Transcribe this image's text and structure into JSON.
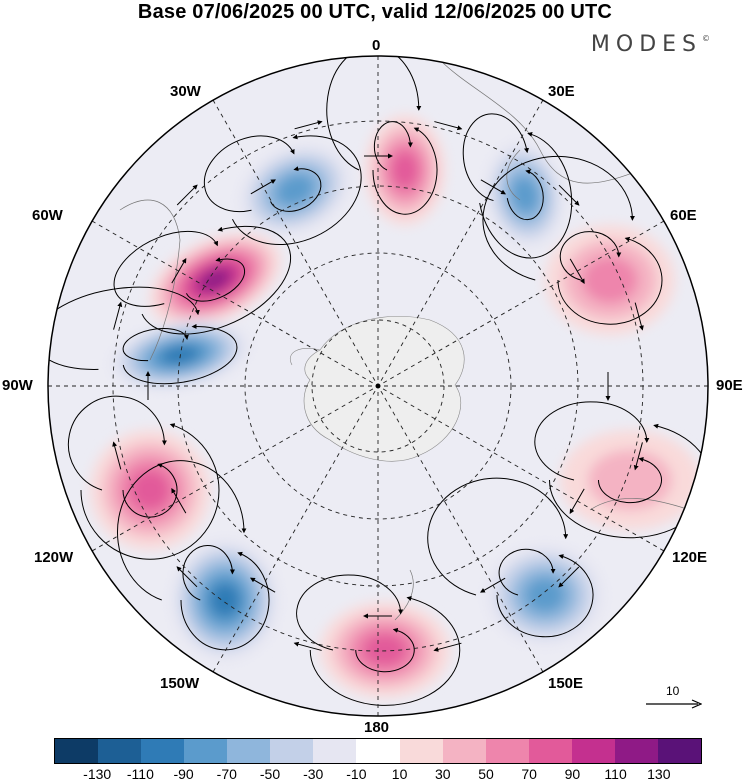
{
  "title": "Base 07/06/2025 00 UTC, valid 12/06/2025 00 UTC",
  "brand": "MODES",
  "brand_mark": "©",
  "longitude_labels": {
    "lon_0": "0",
    "lon_30e": "30E",
    "lon_60e": "60E",
    "lon_90e": "90E",
    "lon_120e": "120E",
    "lon_150e": "150E",
    "lon_180": "180",
    "lon_150w": "150W",
    "lon_120w": "120W",
    "lon_90w": "90W",
    "lon_60w": "60W",
    "lon_30w": "30W"
  },
  "reference_vector": {
    "label": "10"
  },
  "colorbar": {
    "colors": [
      "#0d3b66",
      "#1d5f95",
      "#2f7bb6",
      "#5b9bcc",
      "#8fb6dc",
      "#c3d0e8",
      "#e6e6f2",
      "#ffffff",
      "#f9dada",
      "#f4b3c3",
      "#ee85ac",
      "#e25a9a",
      "#c4308f",
      "#8f1a86",
      "#5a1278"
    ],
    "tick_labels": [
      "-130",
      "-110",
      "-90",
      "-70",
      "-50",
      "-30",
      "-10",
      "10",
      "30",
      "50",
      "70",
      "90",
      "110",
      "130"
    ]
  },
  "map_features": {
    "projection": "south-polar-stereographic",
    "field": "geopotential-anomaly",
    "overlay": "wind-streamlines",
    "anomaly_centers": [
      {
        "sign": "positive",
        "level": 110,
        "near_lon": "60W"
      },
      {
        "sign": "negative",
        "level": -90,
        "near_lon": "75W"
      },
      {
        "sign": "negative",
        "level": -70,
        "near_lon": "35W"
      },
      {
        "sign": "positive",
        "level": 70,
        "near_lon": "10W"
      },
      {
        "sign": "negative",
        "level": -70,
        "near_lon": "30E"
      },
      {
        "sign": "positive",
        "level": 50,
        "near_lon": "65E"
      },
      {
        "sign": "positive",
        "level": 30,
        "near_lon": "100E"
      },
      {
        "sign": "negative",
        "level": -70,
        "near_lon": "140E"
      },
      {
        "sign": "positive",
        "level": 70,
        "near_lon": "175W"
      },
      {
        "sign": "negative",
        "level": -90,
        "near_lon": "145W"
      },
      {
        "sign": "positive",
        "level": 70,
        "near_lon": "110W"
      }
    ]
  }
}
